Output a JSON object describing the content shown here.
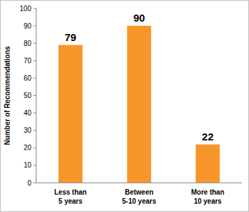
{
  "chart_data": {
    "type": "bar",
    "y_label": "Number of Recommendations",
    "categories": [
      "Less than 5 years",
      "Between 5-10 years",
      "More than 10 years"
    ],
    "values": [
      79,
      90,
      22
    ],
    "color": "#f7962b",
    "ylim": [
      0,
      100
    ],
    "yticks": [
      0,
      10,
      20,
      30,
      40,
      50,
      60,
      70,
      80,
      90,
      100
    ],
    "grid": false,
    "data_labels": true
  }
}
